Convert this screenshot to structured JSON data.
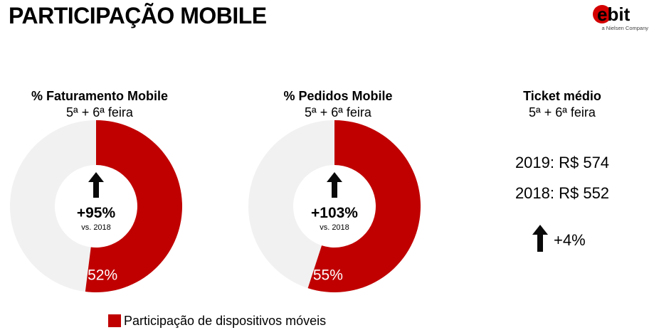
{
  "page_title": "PARTICIPAÇÃO MOBILE",
  "logo": {
    "word": "ebit",
    "subtitle": "a Nielsen Company",
    "accent_color": "#d40000"
  },
  "colors": {
    "share": "#c00000",
    "remainder": "#f1f1f1",
    "arrow": "#0a0a0a"
  },
  "arrow_icon": "up-arrow-icon",
  "chart_data": [
    {
      "type": "pie",
      "title": "% Faturamento Mobile",
      "subtitle": "5ª + 6ª feira",
      "value": 52,
      "value_label": "52%",
      "growth": "+95%",
      "growth_note": "vs. 2018"
    },
    {
      "type": "pie",
      "title": "% Pedidos Mobile",
      "subtitle": "5ª + 6ª feira",
      "value": 55,
      "value_label": "55%",
      "growth": "+103%",
      "growth_note": "vs. 2018"
    }
  ],
  "ticket": {
    "title": "Ticket médio",
    "subtitle": "5ª + 6ª feira",
    "line_2019": "2019: R$ 574",
    "line_2018": "2018: R$ 552",
    "growth": "+4%"
  },
  "legend": {
    "label": "Participação de dispositivos móveis"
  }
}
